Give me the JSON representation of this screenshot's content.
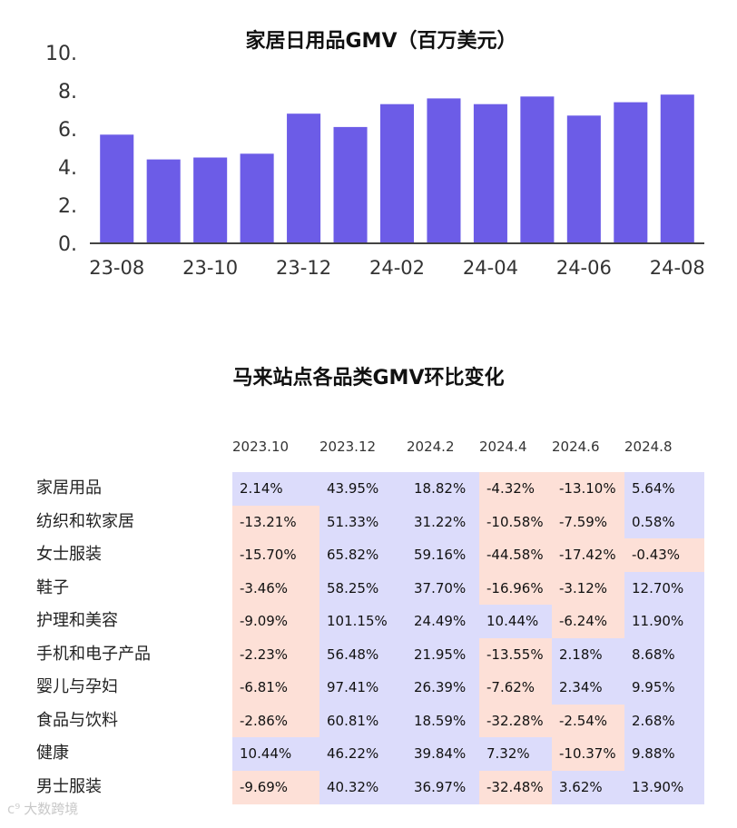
{
  "chart_data": [
    {
      "type": "bar",
      "title": "家居日用品GMV（百万美元）",
      "categories": [
        "23-08",
        "23-09",
        "23-10",
        "23-11",
        "23-12",
        "24-01",
        "24-02",
        "24-03",
        "24-04",
        "24-05",
        "24-06",
        "24-07",
        "24-08"
      ],
      "values": [
        5.7,
        4.4,
        4.5,
        4.7,
        6.8,
        6.1,
        7.3,
        7.6,
        7.3,
        7.7,
        6.7,
        7.4,
        7.8
      ],
      "shown_tick_labels": [
        "23-08",
        "23-10",
        "23-12",
        "24-02",
        "24-04",
        "24-06",
        "24-08"
      ],
      "ytick_labels": [
        "0.",
        "2.",
        "4.",
        "6.",
        "8.",
        "10."
      ],
      "ylim": [
        0,
        10
      ],
      "bar_color": "#6c5ce7",
      "xlabel": "",
      "ylabel": ""
    },
    {
      "type": "table",
      "title": "马来站点各品类GMV环比变化",
      "columns": [
        "2023.10",
        "2023.12",
        "2024.2",
        "2024.4",
        "2024.6",
        "2024.8"
      ],
      "rows": [
        {
          "label": "家居用品",
          "values": [
            "2.14%",
            "43.95%",
            "18.82%",
            "-4.32%",
            "-13.10%",
            "5.64%"
          ]
        },
        {
          "label": "纺织和软家居",
          "values": [
            "-13.21%",
            "51.33%",
            "31.22%",
            "-10.58%",
            "-7.59%",
            "0.58%"
          ]
        },
        {
          "label": "女士服装",
          "values": [
            "-15.70%",
            "65.82%",
            "59.16%",
            "-44.58%",
            "-17.42%",
            "-0.43%"
          ]
        },
        {
          "label": "鞋子",
          "values": [
            "-3.46%",
            "58.25%",
            "37.70%",
            "-16.96%",
            "-3.12%",
            "12.70%"
          ]
        },
        {
          "label": "护理和美容",
          "values": [
            "-9.09%",
            "101.15%",
            "24.49%",
            "10.44%",
            "-6.24%",
            "11.90%"
          ]
        },
        {
          "label": "手机和电子产品",
          "values": [
            "-2.23%",
            "56.48%",
            "21.95%",
            "-13.55%",
            "2.18%",
            "8.68%"
          ]
        },
        {
          "label": "婴儿与孕妇",
          "values": [
            "-6.81%",
            "97.41%",
            "26.39%",
            "-7.62%",
            "2.34%",
            "9.95%"
          ]
        },
        {
          "label": "食品与饮料",
          "values": [
            "-2.86%",
            "60.81%",
            "18.59%",
            "-32.28%",
            "-2.54%",
            "2.68%"
          ]
        },
        {
          "label": "健康",
          "values": [
            "10.44%",
            "46.22%",
            "39.84%",
            "7.32%",
            "-10.37%",
            "9.88%"
          ]
        },
        {
          "label": "男士服装",
          "values": [
            "-9.69%",
            "40.32%",
            "36.97%",
            "-32.48%",
            "3.62%",
            "13.90%"
          ]
        }
      ],
      "positive_color": "#dcdcfb",
      "negative_color": "#fde0d7"
    }
  ],
  "watermark": {
    "text": "大数跨境",
    "icon": "cross-border-logo-icon"
  }
}
